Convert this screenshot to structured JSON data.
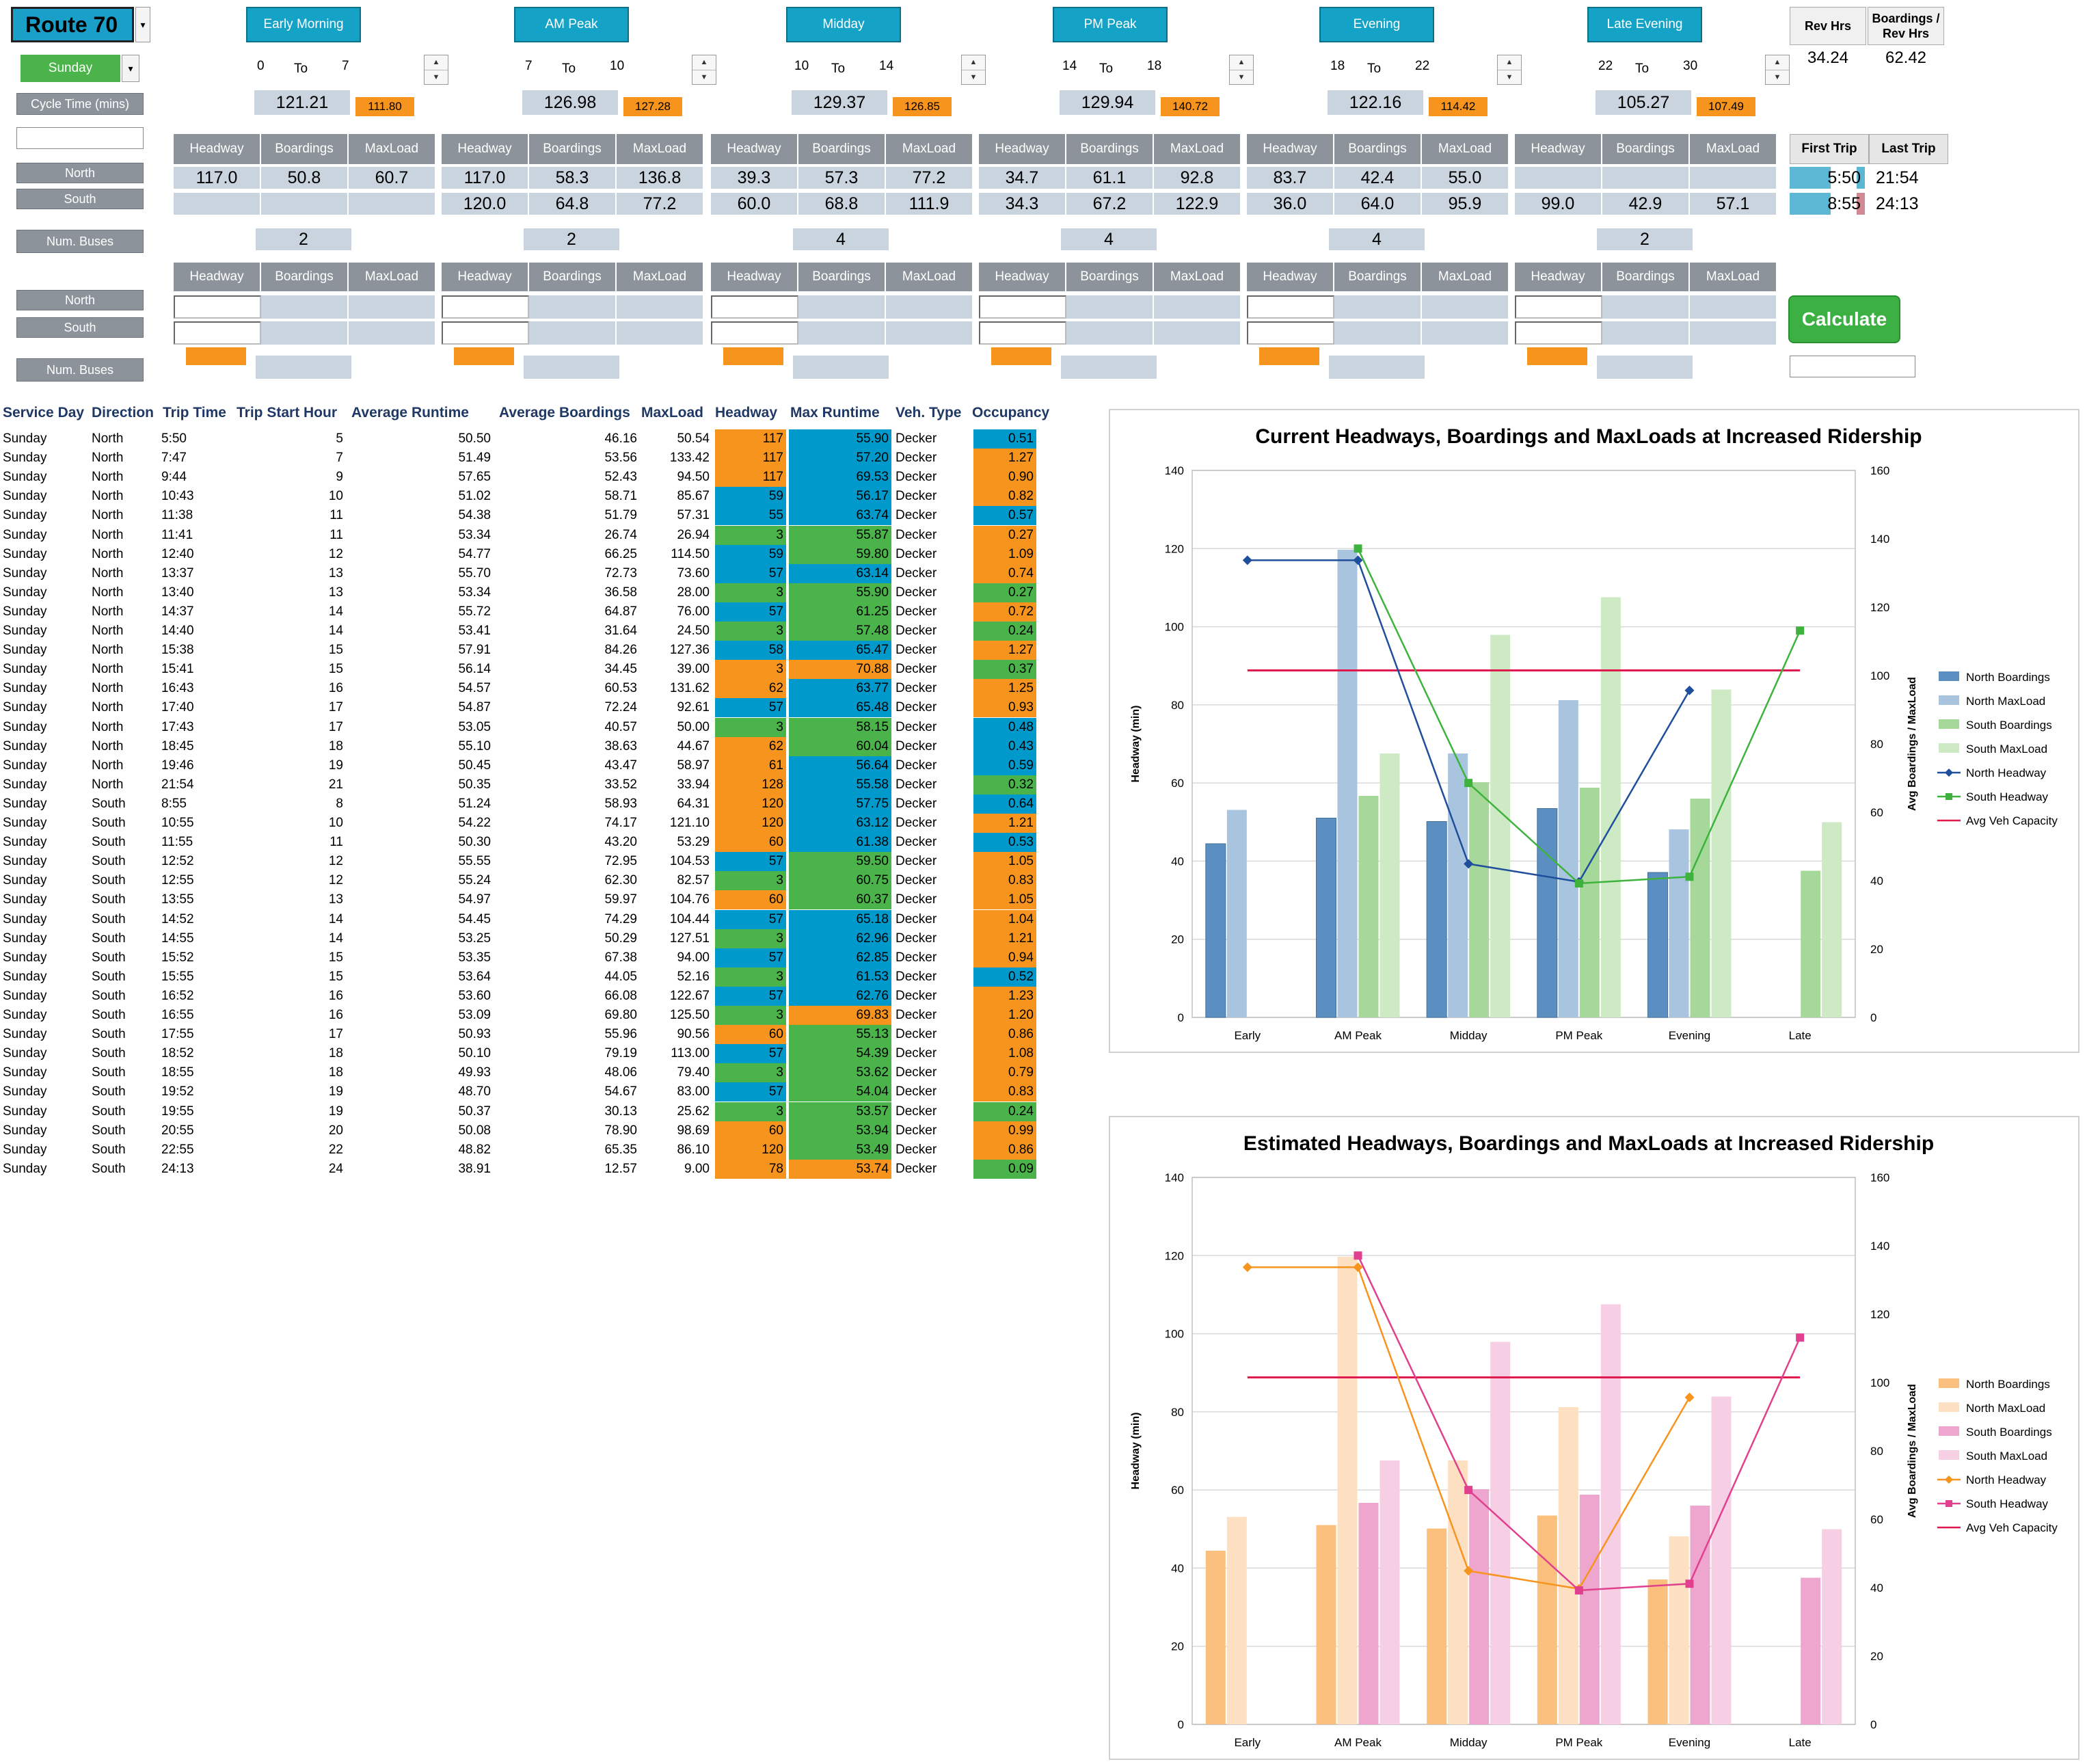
{
  "route": {
    "title": "Route 70",
    "day": "Sunday",
    "cycle_label": "Cycle Time (mins)"
  },
  "periods": [
    {
      "name": "Early Morning",
      "from": "0",
      "to_label": "To",
      "to": "7",
      "cycle": "121.21",
      "cycle_alt": "111.80",
      "north": [
        "117.0",
        "50.8",
        "60.7"
      ],
      "south": [
        "",
        "",
        ""
      ],
      "buses": "2"
    },
    {
      "name": "AM Peak",
      "from": "7",
      "to_label": "To",
      "to": "10",
      "cycle": "126.98",
      "cycle_alt": "127.28",
      "north": [
        "117.0",
        "58.3",
        "136.8"
      ],
      "south": [
        "120.0",
        "64.8",
        "77.2"
      ],
      "buses": "2"
    },
    {
      "name": "Midday",
      "from": "10",
      "to_label": "To",
      "to": "14",
      "cycle": "129.37",
      "cycle_alt": "126.85",
      "north": [
        "39.3",
        "57.3",
        "77.2"
      ],
      "south": [
        "60.0",
        "68.8",
        "111.9"
      ],
      "buses": "4"
    },
    {
      "name": "PM Peak",
      "from": "14",
      "to_label": "To",
      "to": "18",
      "cycle": "129.94",
      "cycle_alt": "140.72",
      "north": [
        "34.7",
        "61.1",
        "92.8"
      ],
      "south": [
        "34.3",
        "67.2",
        "122.9"
      ],
      "buses": "4"
    },
    {
      "name": "Evening",
      "from": "18",
      "to_label": "To",
      "to": "22",
      "cycle": "122.16",
      "cycle_alt": "114.42",
      "north": [
        "83.7",
        "42.4",
        "55.0"
      ],
      "south": [
        "36.0",
        "64.0",
        "95.9"
      ],
      "buses": "4"
    },
    {
      "name": "Late Evening",
      "from": "22",
      "to_label": "To",
      "to": "30",
      "cycle": "105.27",
      "cycle_alt": "107.49",
      "north": [
        "",
        "",
        ""
      ],
      "south": [
        "99.0",
        "42.9",
        "57.1"
      ],
      "buses": "2"
    }
  ],
  "col_headers": [
    "Headway",
    "Boardings",
    "MaxLoad"
  ],
  "labels": {
    "north": "North",
    "south": "South",
    "num_buses": "Num. Buses"
  },
  "rev": {
    "rev_hrs_label": "Rev Hrs",
    "bph_label": "Boardings / Rev Hrs",
    "rev_hrs": "34.24",
    "bph": "62.42"
  },
  "trips": {
    "first_label": "First Trip",
    "last_label": "Last Trip",
    "north_first": "5:50",
    "north_last": "21:54",
    "south_first": "8:55",
    "south_last": "24:13"
  },
  "calculate_label": "Calculate",
  "colors": {
    "orange": "#f7941d",
    "blue": "#0099cc",
    "green": "#4ab44a",
    "header_blue": "#14a3c7",
    "gray": "#8c939a"
  },
  "table": {
    "headers": [
      "Service Day",
      "Direction",
      "Trip Time",
      "Trip Start Hour",
      "Average Runtime",
      "Average Boardings",
      "MaxLoad",
      "Headway",
      "Max Runtime",
      "Veh. Type",
      "Occupancy"
    ],
    "rows": [
      [
        "Sunday",
        "North",
        "5:50",
        "5",
        "50.50",
        "46.16",
        "50.54",
        "117",
        "55.90",
        "Decker",
        "0.51",
        "o",
        "b",
        "b"
      ],
      [
        "Sunday",
        "North",
        "7:47",
        "7",
        "51.49",
        "53.56",
        "133.42",
        "117",
        "57.20",
        "Decker",
        "1.27",
        "o",
        "b",
        "o"
      ],
      [
        "Sunday",
        "North",
        "9:44",
        "9",
        "57.65",
        "52.43",
        "94.50",
        "117",
        "69.53",
        "Decker",
        "0.90",
        "o",
        "b",
        "o"
      ],
      [
        "Sunday",
        "North",
        "10:43",
        "10",
        "51.02",
        "58.71",
        "85.67",
        "59",
        "56.17",
        "Decker",
        "0.82",
        "b",
        "b",
        "o"
      ],
      [
        "Sunday",
        "North",
        "11:38",
        "11",
        "54.38",
        "51.79",
        "57.31",
        "55",
        "63.74",
        "Decker",
        "0.57",
        "b",
        "b",
        "b"
      ],
      [
        "Sunday",
        "North",
        "11:41",
        "11",
        "53.34",
        "26.74",
        "26.94",
        "3",
        "55.87",
        "Decker",
        "0.27",
        "g",
        "g",
        "o"
      ],
      [
        "Sunday",
        "North",
        "12:40",
        "12",
        "54.77",
        "66.25",
        "114.50",
        "59",
        "59.80",
        "Decker",
        "1.09",
        "b",
        "g",
        "o"
      ],
      [
        "Sunday",
        "North",
        "13:37",
        "13",
        "55.70",
        "72.73",
        "73.60",
        "57",
        "63.14",
        "Decker",
        "0.74",
        "b",
        "b",
        "o"
      ],
      [
        "Sunday",
        "North",
        "13:40",
        "13",
        "53.34",
        "36.58",
        "28.00",
        "3",
        "55.90",
        "Decker",
        "0.27",
        "g",
        "g",
        "g"
      ],
      [
        "Sunday",
        "North",
        "14:37",
        "14",
        "55.72",
        "64.87",
        "76.00",
        "57",
        "61.25",
        "Decker",
        "0.72",
        "b",
        "g",
        "o"
      ],
      [
        "Sunday",
        "North",
        "14:40",
        "14",
        "53.41",
        "31.64",
        "24.50",
        "3",
        "57.48",
        "Decker",
        "0.24",
        "g",
        "g",
        "g"
      ],
      [
        "Sunday",
        "North",
        "15:38",
        "15",
        "57.91",
        "84.26",
        "127.36",
        "58",
        "65.47",
        "Decker",
        "1.27",
        "b",
        "b",
        "o"
      ],
      [
        "Sunday",
        "North",
        "15:41",
        "15",
        "56.14",
        "34.45",
        "39.00",
        "3",
        "70.88",
        "Decker",
        "0.37",
        "o",
        "o",
        "g"
      ],
      [
        "Sunday",
        "North",
        "16:43",
        "16",
        "54.57",
        "60.53",
        "131.62",
        "62",
        "63.77",
        "Decker",
        "1.25",
        "o",
        "b",
        "o"
      ],
      [
        "Sunday",
        "North",
        "17:40",
        "17",
        "54.87",
        "72.24",
        "92.61",
        "57",
        "65.48",
        "Decker",
        "0.93",
        "b",
        "b",
        "o"
      ],
      [
        "Sunday",
        "North",
        "17:43",
        "17",
        "53.05",
        "40.57",
        "50.00",
        "3",
        "58.15",
        "Decker",
        "0.48",
        "g",
        "g",
        "b"
      ],
      [
        "Sunday",
        "North",
        "18:45",
        "18",
        "55.10",
        "38.63",
        "44.67",
        "62",
        "60.04",
        "Decker",
        "0.43",
        "o",
        "g",
        "b"
      ],
      [
        "Sunday",
        "North",
        "19:46",
        "19",
        "50.45",
        "43.47",
        "58.97",
        "61",
        "56.64",
        "Decker",
        "0.59",
        "o",
        "b",
        "b"
      ],
      [
        "Sunday",
        "North",
        "21:54",
        "21",
        "50.35",
        "33.52",
        "33.94",
        "128",
        "55.58",
        "Decker",
        "0.32",
        "o",
        "b",
        "g"
      ],
      [
        "Sunday",
        "South",
        "8:55",
        "8",
        "51.24",
        "58.93",
        "64.31",
        "120",
        "57.75",
        "Decker",
        "0.64",
        "o",
        "b",
        "b"
      ],
      [
        "Sunday",
        "South",
        "10:55",
        "10",
        "54.22",
        "74.17",
        "121.10",
        "120",
        "63.12",
        "Decker",
        "1.21",
        "o",
        "b",
        "o"
      ],
      [
        "Sunday",
        "South",
        "11:55",
        "11",
        "50.30",
        "43.20",
        "53.29",
        "60",
        "61.38",
        "Decker",
        "0.53",
        "o",
        "b",
        "b"
      ],
      [
        "Sunday",
        "South",
        "12:52",
        "12",
        "55.55",
        "72.95",
        "104.53",
        "57",
        "59.50",
        "Decker",
        "1.05",
        "b",
        "g",
        "o"
      ],
      [
        "Sunday",
        "South",
        "12:55",
        "12",
        "55.24",
        "62.30",
        "82.57",
        "3",
        "60.75",
        "Decker",
        "0.83",
        "g",
        "g",
        "o"
      ],
      [
        "Sunday",
        "South",
        "13:55",
        "13",
        "54.97",
        "59.97",
        "104.76",
        "60",
        "60.37",
        "Decker",
        "1.05",
        "o",
        "g",
        "o"
      ],
      [
        "Sunday",
        "South",
        "14:52",
        "14",
        "54.45",
        "74.29",
        "104.44",
        "57",
        "65.18",
        "Decker",
        "1.04",
        "b",
        "b",
        "o"
      ],
      [
        "Sunday",
        "South",
        "14:55",
        "14",
        "53.25",
        "50.29",
        "127.51",
        "3",
        "62.96",
        "Decker",
        "1.21",
        "g",
        "b",
        "o"
      ],
      [
        "Sunday",
        "South",
        "15:52",
        "15",
        "53.35",
        "67.38",
        "94.00",
        "57",
        "62.85",
        "Decker",
        "0.94",
        "b",
        "b",
        "o"
      ],
      [
        "Sunday",
        "South",
        "15:55",
        "15",
        "53.64",
        "44.05",
        "52.16",
        "3",
        "61.53",
        "Decker",
        "0.52",
        "g",
        "b",
        "b"
      ],
      [
        "Sunday",
        "South",
        "16:52",
        "16",
        "53.60",
        "66.08",
        "122.67",
        "57",
        "62.76",
        "Decker",
        "1.23",
        "b",
        "b",
        "o"
      ],
      [
        "Sunday",
        "South",
        "16:55",
        "16",
        "53.09",
        "69.80",
        "125.50",
        "3",
        "69.83",
        "Decker",
        "1.20",
        "g",
        "o",
        "o"
      ],
      [
        "Sunday",
        "South",
        "17:55",
        "17",
        "50.93",
        "55.96",
        "90.56",
        "60",
        "55.13",
        "Decker",
        "0.86",
        "o",
        "g",
        "o"
      ],
      [
        "Sunday",
        "South",
        "18:52",
        "18",
        "50.10",
        "79.19",
        "113.00",
        "57",
        "54.39",
        "Decker",
        "1.08",
        "b",
        "g",
        "o"
      ],
      [
        "Sunday",
        "South",
        "18:55",
        "18",
        "49.93",
        "48.06",
        "79.40",
        "3",
        "53.62",
        "Decker",
        "0.79",
        "g",
        "g",
        "o"
      ],
      [
        "Sunday",
        "South",
        "19:52",
        "19",
        "48.70",
        "54.67",
        "83.00",
        "57",
        "54.04",
        "Decker",
        "0.83",
        "b",
        "g",
        "o"
      ],
      [
        "Sunday",
        "South",
        "19:55",
        "19",
        "50.37",
        "30.13",
        "25.62",
        "3",
        "53.57",
        "Decker",
        "0.24",
        "g",
        "g",
        "g"
      ],
      [
        "Sunday",
        "South",
        "20:55",
        "20",
        "50.08",
        "78.90",
        "98.69",
        "60",
        "53.94",
        "Decker",
        "0.99",
        "o",
        "g",
        "o"
      ],
      [
        "Sunday",
        "South",
        "22:55",
        "22",
        "48.82",
        "65.35",
        "86.10",
        "120",
        "53.49",
        "Decker",
        "0.86",
        "o",
        "g",
        "o"
      ],
      [
        "Sunday",
        "South",
        "24:13",
        "24",
        "38.91",
        "12.57",
        "9.00",
        "78",
        "53.74",
        "Decker",
        "0.09",
        "o",
        "o",
        "g"
      ]
    ]
  },
  "chart_data": [
    {
      "type": "bar",
      "title": "Current Headways, Boardings and MaxLoads at  Increased Ridership",
      "categories": [
        "Early",
        "AM Peak",
        "Midday",
        "PM Peak",
        "Evening",
        "Late"
      ],
      "ylabel": "Headway (min)",
      "y2label": "Avg Boardings / MaxLoad",
      "ylim": [
        0,
        140
      ],
      "y2lim": [
        0,
        160
      ],
      "series": [
        {
          "name": "North Boardings",
          "kind": "bar",
          "axis": "y2",
          "color": "#5b8ec1",
          "values": [
            50.8,
            58.3,
            57.3,
            61.1,
            42.4,
            null
          ]
        },
        {
          "name": "North MaxLoad",
          "kind": "bar",
          "axis": "y2",
          "color": "#a9c4df",
          "values": [
            60.7,
            136.8,
            77.2,
            92.8,
            55.0,
            null
          ]
        },
        {
          "name": "South Boardings",
          "kind": "bar",
          "axis": "y2",
          "color": "#a6d89a",
          "values": [
            null,
            64.8,
            68.8,
            67.2,
            64.0,
            42.9
          ]
        },
        {
          "name": "South MaxLoad",
          "kind": "bar",
          "axis": "y2",
          "color": "#cdeac4",
          "values": [
            null,
            77.2,
            111.9,
            122.9,
            95.9,
            57.1
          ]
        },
        {
          "name": "North Headway",
          "kind": "line",
          "axis": "y",
          "color": "#1f4e9c",
          "marker": "diamond",
          "values": [
            117,
            117,
            39.3,
            34.7,
            83.7,
            null
          ]
        },
        {
          "name": "South Headway",
          "kind": "line",
          "axis": "y",
          "color": "#3db33d",
          "marker": "square",
          "values": [
            null,
            120,
            60,
            34.3,
            36,
            99
          ]
        },
        {
          "name": "Avg Veh Capacity",
          "kind": "hline",
          "axis": "y2",
          "color": "#e0194e",
          "value": 101.5
        }
      ]
    },
    {
      "type": "bar",
      "title": "Estimated Headways, Boardings and MaxLoads at  Increased Ridership",
      "categories": [
        "Early",
        "AM Peak",
        "Midday",
        "PM Peak",
        "Evening",
        "Late"
      ],
      "ylabel": "Headway (min)",
      "y2label": "Avg Boardings / MaxLoad",
      "ylim": [
        0,
        140
      ],
      "y2lim": [
        0,
        160
      ],
      "series": [
        {
          "name": "North Boardings",
          "kind": "bar",
          "axis": "y2",
          "color": "#fbc07e",
          "values": [
            50.8,
            58.3,
            57.3,
            61.1,
            42.4,
            null
          ]
        },
        {
          "name": "North MaxLoad",
          "kind": "bar",
          "axis": "y2",
          "color": "#fde0c2",
          "values": [
            60.7,
            136.8,
            77.2,
            92.8,
            55.0,
            null
          ]
        },
        {
          "name": "South Boardings",
          "kind": "bar",
          "axis": "y2",
          "color": "#eea6cf",
          "values": [
            null,
            64.8,
            68.8,
            67.2,
            64.0,
            42.9
          ]
        },
        {
          "name": "South MaxLoad",
          "kind": "bar",
          "axis": "y2",
          "color": "#f6cfe4",
          "values": [
            null,
            77.2,
            111.9,
            122.9,
            95.9,
            57.1
          ]
        },
        {
          "name": "North Headway",
          "kind": "line",
          "axis": "y",
          "color": "#f7941d",
          "marker": "diamond",
          "values": [
            117,
            117,
            39.3,
            34.7,
            83.7,
            null
          ]
        },
        {
          "name": "South Headway",
          "kind": "line",
          "axis": "y",
          "color": "#e0408e",
          "marker": "square",
          "values": [
            null,
            120,
            60,
            34.3,
            36,
            99
          ]
        },
        {
          "name": "Avg Veh Capacity",
          "kind": "hline",
          "axis": "y2",
          "color": "#e0194e",
          "value": 101.5
        }
      ]
    }
  ]
}
